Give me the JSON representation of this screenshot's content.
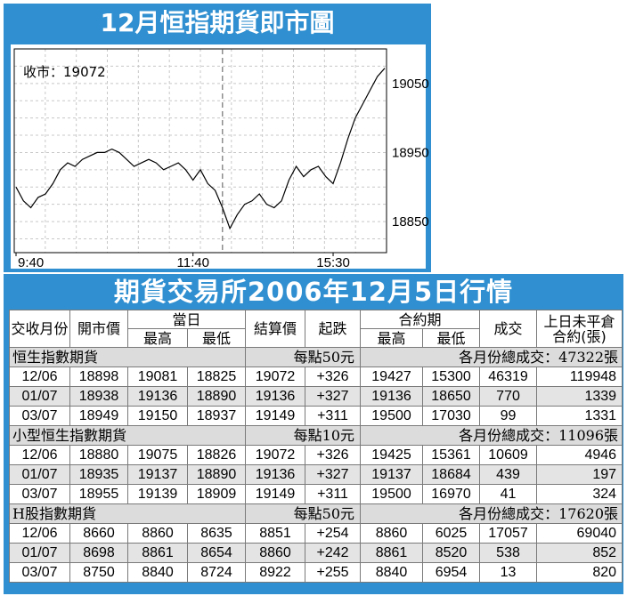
{
  "chart_data": {
    "type": "line",
    "title": "12月恒指期貨即市圖",
    "close_label": "收市：19072",
    "x_tick_labels": [
      "9:40",
      "11:40",
      "15:30"
    ],
    "y_ticks": [
      18850,
      18950,
      19050
    ],
    "ylim": [
      18805,
      19100
    ],
    "grid": true,
    "x": [
      0,
      2,
      4,
      6,
      8,
      10,
      12,
      14,
      16,
      18,
      20,
      22,
      24,
      26,
      28,
      30,
      32,
      34,
      36,
      38,
      40,
      42,
      44,
      46,
      48,
      50,
      52,
      54,
      56,
      58,
      60,
      62,
      64,
      66,
      68,
      70,
      72,
      74,
      76,
      78,
      80,
      82,
      84,
      86,
      88,
      90,
      92,
      94,
      96,
      98,
      100
    ],
    "values": [
      18900,
      18880,
      18870,
      18885,
      18890,
      18905,
      18925,
      18935,
      18930,
      18940,
      18945,
      18950,
      18950,
      18955,
      18950,
      18940,
      18930,
      18935,
      18940,
      18935,
      18925,
      18930,
      18935,
      18925,
      18910,
      18925,
      18905,
      18895,
      18870,
      18840,
      18860,
      18875,
      18880,
      18890,
      18875,
      18870,
      18880,
      18910,
      18930,
      18915,
      18925,
      18930,
      18915,
      18905,
      18935,
      18970,
      19000,
      19020,
      19040,
      19060,
      19072
    ],
    "session_break_x": 56
  },
  "table": {
    "title": "期貨交易所2006年12月5日行情",
    "headers": {
      "month": "交收月份",
      "open": "開市價",
      "day": "當日",
      "high": "最高",
      "low": "最低",
      "settle": "結算價",
      "change": "起跌",
      "contract": "合約期",
      "c_high": "最高",
      "c_low": "最低",
      "volume": "成交",
      "oi": "上日未平倉合約(張)"
    },
    "sections": [
      {
        "name": "恒生指數期貨",
        "unit": "每點50元",
        "total": "各月份總成交：47322張",
        "rows": [
          [
            "12/06",
            "18898",
            "19081",
            "18825",
            "19072",
            "+326",
            "19427",
            "15300",
            "46319",
            "119948"
          ],
          [
            "01/07",
            "18938",
            "19136",
            "18890",
            "19136",
            "+327",
            "19136",
            "18650",
            "770",
            "1339"
          ],
          [
            "03/07",
            "18949",
            "19150",
            "18937",
            "19149",
            "+311",
            "19500",
            "17030",
            "99",
            "1331"
          ]
        ]
      },
      {
        "name": "小型恒生指數期貨",
        "unit": "每點10元",
        "total": "各月份總成交：11096張",
        "rows": [
          [
            "12/06",
            "18880",
            "19075",
            "18826",
            "19072",
            "+326",
            "19425",
            "15361",
            "10609",
            "4946"
          ],
          [
            "01/07",
            "18935",
            "19137",
            "18890",
            "19136",
            "+327",
            "19137",
            "18684",
            "439",
            "197"
          ],
          [
            "03/07",
            "18955",
            "19139",
            "18909",
            "19149",
            "+311",
            "19500",
            "16970",
            "41",
            "324"
          ]
        ]
      },
      {
        "name": "H股指數期貨",
        "unit": "每點50元",
        "total": "各月份總成交：17620張",
        "rows": [
          [
            "12/06",
            "8660",
            "8860",
            "8635",
            "8851",
            "+254",
            "8860",
            "6025",
            "17057",
            "69040"
          ],
          [
            "01/07",
            "8698",
            "8861",
            "8654",
            "8860",
            "+242",
            "8861",
            "8520",
            "538",
            "852"
          ],
          [
            "03/07",
            "8750",
            "8840",
            "8724",
            "8922",
            "+255",
            "8840",
            "6954",
            "13",
            "820"
          ]
        ]
      }
    ]
  }
}
